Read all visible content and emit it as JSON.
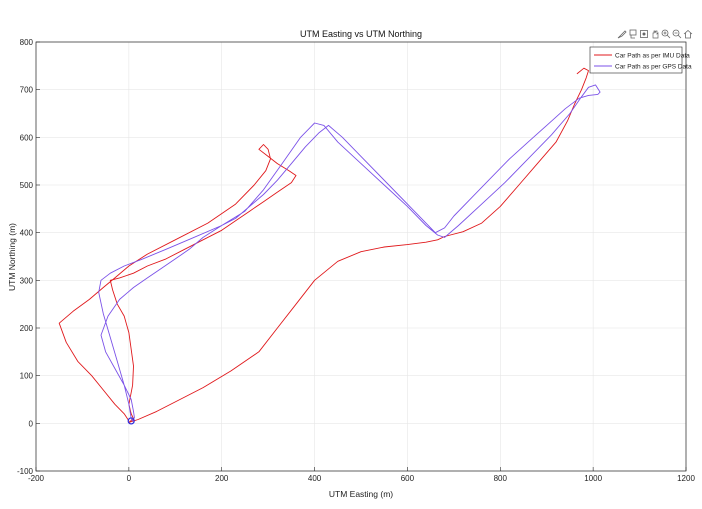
{
  "toolbar": {
    "icons": [
      "brush-icon",
      "data-tips-icon",
      "rotate-icon",
      "pan-icon",
      "zoom-in-icon",
      "zoom-out-icon",
      "home-icon"
    ]
  },
  "chart_data": {
    "type": "line",
    "title": "UTM Easting vs UTM Northing",
    "xlabel": "UTM Easting (m)",
    "ylabel": "UTM Northing (m)",
    "xlim": [
      -200,
      1200
    ],
    "ylim": [
      -100,
      800
    ],
    "xticks": [
      "-200",
      "0",
      "200",
      "400",
      "600",
      "800",
      "1000",
      "1200"
    ],
    "yticks": [
      "-100",
      "0",
      "100",
      "200",
      "300",
      "400",
      "500",
      "600",
      "700",
      "800"
    ],
    "grid": true,
    "legend_position": "top-right",
    "series": [
      {
        "name": "Car Path as per IMU Data",
        "color": "#e0191c",
        "x": [
          0,
          -10,
          -30,
          -55,
          -80,
          -110,
          -135,
          -150,
          -120,
          -85,
          -55,
          -30,
          0,
          40,
          100,
          170,
          230,
          270,
          295,
          305,
          300,
          290,
          280,
          300,
          320,
          345,
          360,
          350,
          320,
          290,
          260,
          230,
          200,
          160,
          120,
          80,
          40,
          10,
          -20,
          -40,
          -35,
          -25,
          -10,
          0,
          5,
          10,
          8,
          0,
          5,
          10,
          0,
          20,
          60,
          100,
          160,
          220,
          280,
          320,
          360,
          400,
          450,
          500,
          550,
          600,
          640,
          665,
          680,
          720,
          760,
          800,
          840,
          880,
          920,
          945,
          960,
          975,
          985,
          990,
          980,
          965
        ],
        "y": [
          5,
          20,
          40,
          70,
          100,
          130,
          170,
          210,
          235,
          260,
          285,
          305,
          330,
          355,
          385,
          420,
          460,
          500,
          530,
          555,
          575,
          585,
          575,
          560,
          545,
          530,
          520,
          505,
          485,
          465,
          445,
          425,
          405,
          385,
          365,
          345,
          330,
          315,
          305,
          300,
          280,
          250,
          225,
          190,
          155,
          120,
          80,
          40,
          20,
          10,
          2,
          8,
          25,
          45,
          75,
          110,
          150,
          200,
          250,
          300,
          340,
          360,
          370,
          375,
          380,
          385,
          392,
          402,
          420,
          455,
          500,
          545,
          590,
          635,
          670,
          700,
          725,
          740,
          745,
          733
        ]
      },
      {
        "name": "Car Path as per GPS Data",
        "color": "#7b52e8",
        "x": [
          5,
          0,
          -10,
          -25,
          -40,
          -55,
          -65,
          -60,
          -40,
          -10,
          30,
          80,
          140,
          200,
          250,
          290,
          330,
          370,
          400,
          420,
          450,
          500,
          550,
          600,
          640,
          665,
          680,
          710,
          760,
          810,
          860,
          910,
          950,
          975,
          990,
          1005,
          1015,
          1010,
          990,
          970,
          940,
          900,
          860,
          820,
          780,
          740,
          700,
          680,
          660,
          620,
          580,
          540,
          500,
          460,
          430,
          410,
          380,
          350,
          320,
          290,
          260,
          230,
          200,
          160,
          130,
          100,
          70,
          40,
          10,
          -20,
          -45,
          -60,
          -50,
          -30,
          -10,
          5,
          10,
          12,
          8,
          5
        ],
        "y": [
          10,
          40,
          80,
          130,
          180,
          230,
          275,
          300,
          315,
          330,
          345,
          365,
          390,
          415,
          445,
          490,
          545,
          600,
          630,
          625,
          590,
          545,
          500,
          455,
          415,
          395,
          390,
          415,
          460,
          505,
          555,
          605,
          650,
          685,
          705,
          710,
          695,
          690,
          688,
          682,
          660,
          625,
          590,
          555,
          515,
          475,
          435,
          410,
          400,
          440,
          480,
          520,
          560,
          600,
          625,
          610,
          580,
          545,
          510,
          480,
          455,
          430,
          415,
          390,
          365,
          345,
          325,
          305,
          285,
          260,
          225,
          185,
          150,
          115,
          80,
          50,
          25,
          12,
          5,
          10
        ]
      }
    ]
  }
}
